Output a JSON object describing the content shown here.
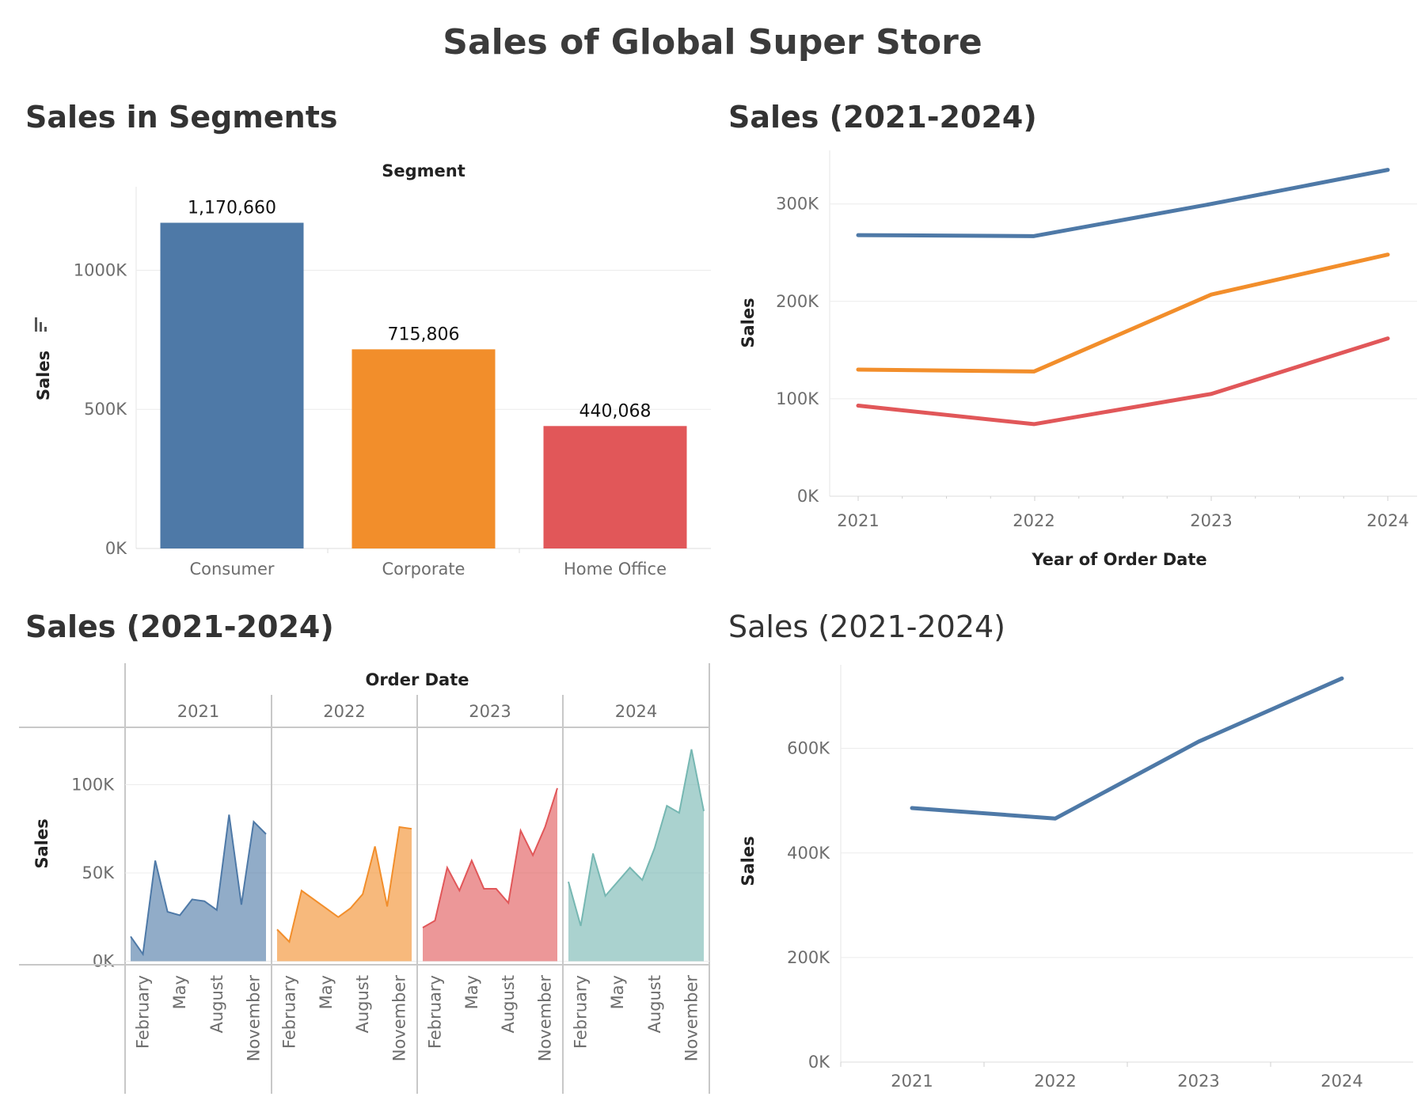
{
  "dashboard_title": "Sales of Global Super Store",
  "panels": {
    "segments": {
      "title": "Sales in Segments"
    },
    "yearly": {
      "title": "Sales (2021-2024)"
    },
    "monthly": {
      "title": "Sales (2021-2024)"
    },
    "total": {
      "title": "Sales (2021-2024)"
    }
  },
  "chart_data": [
    {
      "type": "bar",
      "title": "Sales in Segments",
      "column_header": "Segment",
      "categories": [
        "Consumer",
        "Corporate",
        "Home Office"
      ],
      "values": [
        1170660,
        715806,
        440068
      ],
      "data_labels": [
        "1,170,660",
        "715,806",
        "440,068"
      ],
      "colors": [
        "#4e79a7",
        "#f28e2b",
        "#e15759"
      ],
      "ylabel": "Sales",
      "yticks": [
        0,
        500000,
        1000000
      ],
      "ytick_labels": [
        "0K",
        "500K",
        "1000K"
      ],
      "ylim": [
        0,
        1300000
      ],
      "grid": true
    },
    {
      "type": "line",
      "title": "Sales (2021-2024)",
      "x": [
        "2021",
        "2022",
        "2023",
        "2024"
      ],
      "xlabel": "Year of Order Date",
      "ylabel": "Sales",
      "series": [
        {
          "values": [
            268000,
            267000,
            300000,
            335000
          ],
          "color": "#4e79a7"
        },
        {
          "values": [
            130000,
            128000,
            207000,
            248000
          ],
          "color": "#f28e2b"
        },
        {
          "values": [
            93000,
            74000,
            105000,
            162000
          ],
          "color": "#e15759"
        }
      ],
      "yticks": [
        0,
        100000,
        200000,
        300000
      ],
      "ytick_labels": [
        "0K",
        "100K",
        "200K",
        "300K"
      ],
      "ylim": [
        0,
        355000
      ],
      "grid": true
    },
    {
      "type": "area",
      "title": "Sales (2021-2024)",
      "column_header": "Order Date",
      "ylabel": "Sales",
      "month_labels": [
        "February",
        "May",
        "August",
        "November"
      ],
      "panels": [
        {
          "year": "2021",
          "color": "#4e79a7",
          "values": [
            14000,
            4000,
            57000,
            28000,
            26000,
            35000,
            34000,
            29000,
            83000,
            32000,
            79000,
            72000
          ]
        },
        {
          "year": "2022",
          "color": "#f28e2b",
          "values": [
            18000,
            11000,
            40000,
            35000,
            30000,
            25000,
            30000,
            38000,
            65000,
            31000,
            76000,
            75000
          ]
        },
        {
          "year": "2023",
          "color": "#e15759",
          "values": [
            19000,
            23000,
            53000,
            40000,
            57000,
            41000,
            41000,
            33000,
            74000,
            60000,
            76000,
            98000
          ]
        },
        {
          "year": "2024",
          "color": "#76b7b2",
          "values": [
            45000,
            20000,
            61000,
            37000,
            45000,
            53000,
            46000,
            64000,
            88000,
            84000,
            120000,
            85000
          ]
        }
      ],
      "yticks": [
        0,
        50000,
        100000
      ],
      "ytick_labels": [
        "0K",
        "50K",
        "100K"
      ],
      "ylim": [
        -2000,
        132000
      ],
      "grid": true
    },
    {
      "type": "line",
      "title": "Sales (2021-2024)",
      "x": [
        "2021",
        "2022",
        "2023",
        "2024"
      ],
      "ylabel": "Sales",
      "series": [
        {
          "values": [
            486000,
            466000,
            613000,
            734000
          ],
          "color": "#4e79a7"
        }
      ],
      "yticks": [
        0,
        200000,
        400000,
        600000
      ],
      "ytick_labels": [
        "0K",
        "200K",
        "400K",
        "600K"
      ],
      "ylim": [
        0,
        760000
      ],
      "grid": true
    }
  ]
}
